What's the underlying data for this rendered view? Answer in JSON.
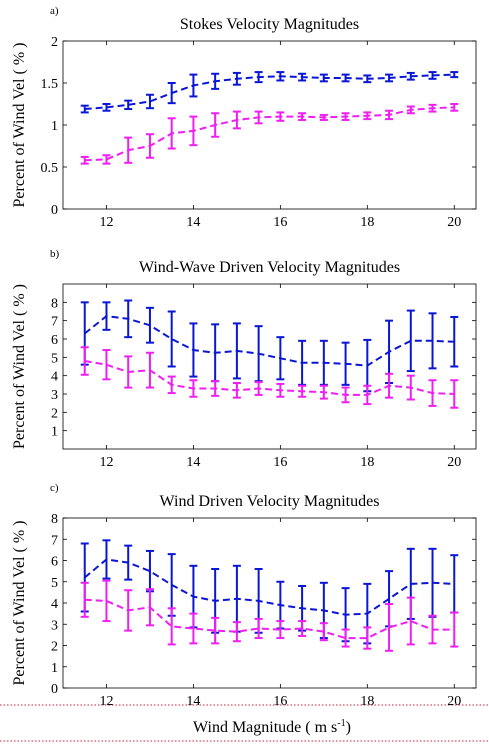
{
  "colors": {
    "blue": "#0a16d6",
    "magenta": "#ee1ff0",
    "guide": "#d21f3c"
  },
  "figure": {
    "xlabel": "Wind Magnitude ( m s",
    "xlabel_sup": "-1",
    "xlabel_end": ")"
  },
  "chart_data": [
    {
      "type": "line",
      "panel_label": "a)",
      "title": "Stokes Velocity Magnitudes",
      "ylabel": "Percent of Wind Vel ( % )",
      "xlabel": "",
      "xlim": [
        11,
        20.5
      ],
      "ylim": [
        0,
        2
      ],
      "xticks": [
        12,
        14,
        16,
        18,
        20
      ],
      "yticks": [
        0,
        0.5,
        1,
        1.5,
        2
      ],
      "ytick_labels": [
        "0",
        "0.5",
        "1",
        "1.5",
        "2"
      ],
      "x": [
        11.5,
        12,
        12.5,
        13,
        13.5,
        14,
        14.5,
        15,
        15.5,
        16,
        16.5,
        17,
        17.5,
        18,
        18.5,
        19,
        19.5,
        20
      ],
      "series": [
        {
          "color": "blue",
          "values": [
            1.19,
            1.21,
            1.24,
            1.28,
            1.38,
            1.47,
            1.52,
            1.55,
            1.57,
            1.58,
            1.57,
            1.56,
            1.56,
            1.55,
            1.56,
            1.58,
            1.59,
            1.6
          ],
          "err": [
            0.04,
            0.04,
            0.05,
            0.08,
            0.12,
            0.13,
            0.09,
            0.07,
            0.06,
            0.05,
            0.04,
            0.04,
            0.04,
            0.04,
            0.04,
            0.04,
            0.04,
            0.03
          ]
        },
        {
          "color": "magenta",
          "values": [
            0.58,
            0.59,
            0.7,
            0.75,
            0.9,
            0.93,
            1.0,
            1.06,
            1.09,
            1.1,
            1.1,
            1.09,
            1.1,
            1.11,
            1.12,
            1.18,
            1.2,
            1.21
          ],
          "err": [
            0.04,
            0.05,
            0.15,
            0.14,
            0.18,
            0.17,
            0.14,
            0.1,
            0.07,
            0.05,
            0.04,
            0.03,
            0.04,
            0.04,
            0.05,
            0.04,
            0.04,
            0.04
          ]
        }
      ]
    },
    {
      "type": "line",
      "panel_label": "b)",
      "title": "Wind-Wave Driven Velocity Magnitudes",
      "ylabel": "Percent of Wind Vel ( % )",
      "xlabel": "",
      "xlim": [
        11,
        20.5
      ],
      "ylim": [
        0,
        9
      ],
      "xticks": [
        12,
        14,
        16,
        18,
        20
      ],
      "yticks": [
        1,
        2,
        3,
        4,
        5,
        6,
        7,
        8
      ],
      "ytick_labels": [
        "1",
        "2",
        "3",
        "4",
        "5",
        "6",
        "7",
        "8"
      ],
      "x": [
        11.5,
        12,
        12.5,
        13,
        13.5,
        14,
        14.5,
        15,
        15.5,
        16,
        16.5,
        17,
        17.5,
        18,
        18.5,
        19,
        19.5,
        20
      ],
      "series": [
        {
          "color": "blue",
          "values": [
            6.3,
            7.25,
            7.1,
            6.75,
            6.0,
            5.4,
            5.25,
            5.35,
            5.2,
            4.95,
            4.7,
            4.7,
            4.65,
            4.55,
            5.3,
            5.9,
            5.9,
            5.85
          ],
          "err": [
            1.7,
            0.75,
            1.0,
            0.95,
            1.5,
            1.45,
            1.55,
            1.5,
            1.5,
            1.15,
            1.2,
            1.2,
            1.15,
            1.4,
            1.7,
            1.65,
            1.5,
            1.35
          ]
        },
        {
          "color": "magenta",
          "values": [
            4.8,
            4.6,
            4.2,
            4.3,
            3.5,
            3.3,
            3.3,
            3.2,
            3.3,
            3.2,
            3.15,
            3.1,
            2.95,
            2.95,
            3.45,
            3.35,
            3.05,
            3.0
          ],
          "err": [
            0.75,
            0.8,
            0.85,
            0.95,
            0.45,
            0.45,
            0.4,
            0.4,
            0.35,
            0.35,
            0.3,
            0.35,
            0.4,
            0.5,
            0.65,
            0.65,
            0.7,
            0.75
          ]
        }
      ]
    },
    {
      "type": "line",
      "panel_label": "c)",
      "title": "Wind Driven Velocity Magnitudes",
      "ylabel": "Percent of Wind Vel ( % )",
      "xlabel": "Wind Magnitude ( m s-1 )",
      "xlim": [
        11,
        20.5
      ],
      "ylim": [
        0,
        8
      ],
      "xticks": [
        12,
        14,
        16,
        18,
        20
      ],
      "yticks": [
        0,
        1,
        2,
        3,
        4,
        5,
        6,
        7,
        8
      ],
      "ytick_labels": [
        "0",
        "1",
        "2",
        "3",
        "4",
        "5",
        "6",
        "7",
        "8"
      ],
      "x": [
        11.5,
        12,
        12.5,
        13,
        13.5,
        14,
        14.5,
        15,
        15.5,
        16,
        16.5,
        17,
        17.5,
        18,
        18.5,
        19,
        19.5,
        20
      ],
      "series": [
        {
          "color": "blue",
          "values": [
            5.2,
            6.05,
            5.9,
            5.5,
            4.85,
            4.3,
            4.1,
            4.2,
            4.1,
            3.9,
            3.75,
            3.65,
            3.45,
            3.5,
            4.2,
            4.9,
            4.95,
            4.9
          ],
          "err": [
            1.6,
            0.9,
            0.8,
            0.95,
            1.45,
            1.45,
            1.5,
            1.55,
            1.5,
            1.1,
            1.05,
            1.3,
            1.25,
            1.4,
            1.3,
            1.65,
            1.6,
            1.35
          ]
        },
        {
          "color": "magenta",
          "values": [
            4.15,
            4.1,
            3.65,
            3.8,
            2.9,
            2.8,
            2.7,
            2.65,
            2.8,
            2.75,
            2.8,
            2.65,
            2.35,
            2.35,
            2.85,
            3.15,
            2.75,
            2.75
          ],
          "err": [
            0.8,
            0.95,
            0.95,
            0.85,
            0.85,
            0.7,
            0.6,
            0.45,
            0.45,
            0.4,
            0.35,
            0.4,
            0.4,
            0.5,
            1.1,
            1.1,
            0.65,
            0.8
          ]
        }
      ]
    }
  ]
}
